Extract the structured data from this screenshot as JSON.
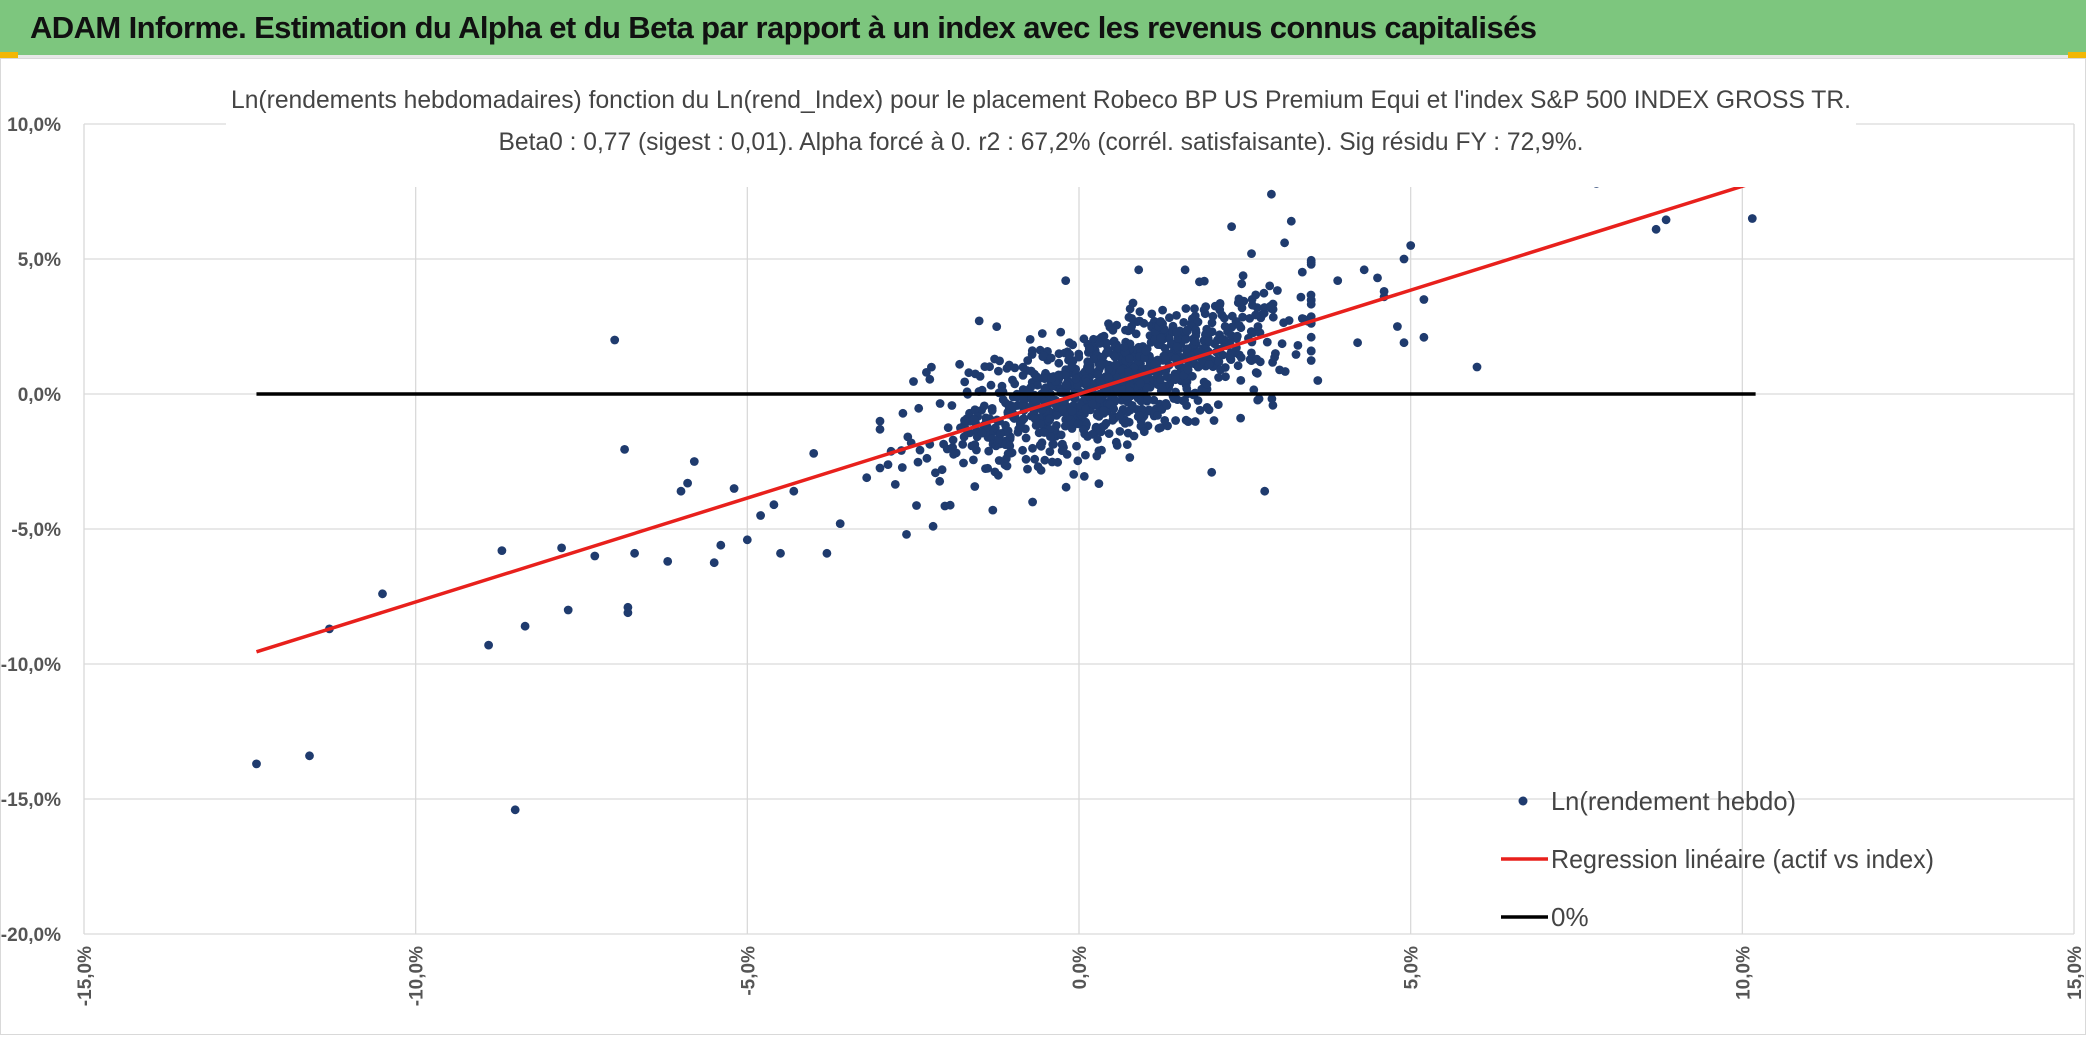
{
  "header": {
    "title": "ADAM Informe. Estimation du Alpha et du Beta par rapport à un index avec les revenus connus capitalisés"
  },
  "colors": {
    "banner": "#7dc67e",
    "points": "#1f3b6e",
    "regression": "#e8201c",
    "zero_line": "#000000",
    "grid": "#d9d9d9",
    "corner_accent": "#f2b705"
  },
  "chart_data": {
    "type": "scatter",
    "title": "Ln(rendements hebdomadaires) fonction du Ln(rend_Index) pour le placement Robeco BP US Premium Equi et l'index S&P 500 INDEX GROSS TR.",
    "subtitle": "Beta0 : 0,77 (sigest : 0,01). Alpha forcé à 0. r2 : 67,2% (corrél. satisfaisante). Sig résidu FY : 72,9%.",
    "xlim": [
      -15,
      15
    ],
    "ylim": [
      -20,
      10
    ],
    "x_ticks": [
      {
        "value": -15,
        "label": "-15,0%"
      },
      {
        "value": -10,
        "label": "-10,0%"
      },
      {
        "value": -5,
        "label": "-5,0%"
      },
      {
        "value": 0,
        "label": "0,0%"
      },
      {
        "value": 5,
        "label": "5,0%"
      },
      {
        "value": 10,
        "label": "10,0%"
      },
      {
        "value": 15,
        "label": "15,0%"
      }
    ],
    "y_ticks": [
      {
        "value": 10,
        "label": "10,0%"
      },
      {
        "value": 5,
        "label": "5,0%"
      },
      {
        "value": 0,
        "label": "0,0%"
      },
      {
        "value": -5,
        "label": "-5,0%"
      },
      {
        "value": -10,
        "label": "-10,0%"
      },
      {
        "value": -15,
        "label": "-15,0%"
      },
      {
        "value": -20,
        "label": "-20,0%"
      }
    ],
    "grid": true,
    "legend_position": "bottom-right",
    "series": [
      {
        "name": "Ln(rendement hebdo)",
        "kind": "scatter",
        "beta": 0.77,
        "spread": 1.1,
        "cloud_points": 1050,
        "cloud_x_range": [
          -3,
          3.5
        ],
        "points": [
          {
            "x": -12.4,
            "y": -13.7
          },
          {
            "x": -11.6,
            "y": -13.4
          },
          {
            "x": -11.3,
            "y": -8.7
          },
          {
            "x": -10.5,
            "y": -7.4
          },
          {
            "x": -8.5,
            "y": -15.4
          },
          {
            "x": -8.9,
            "y": -9.3
          },
          {
            "x": -8.7,
            "y": -5.8
          },
          {
            "x": -8.35,
            "y": -8.6
          },
          {
            "x": -7.8,
            "y": -5.7
          },
          {
            "x": -7.7,
            "y": -8.0
          },
          {
            "x": -7.3,
            "y": -6.0
          },
          {
            "x": -6.8,
            "y": -8.1
          },
          {
            "x": -6.8,
            "y": -7.9
          },
          {
            "x": -6.7,
            "y": -5.9
          },
          {
            "x": -7.0,
            "y": 2.0
          },
          {
            "x": -6.85,
            "y": -2.05
          },
          {
            "x": -6.2,
            "y": -6.2
          },
          {
            "x": -5.5,
            "y": -6.25
          },
          {
            "x": -5.4,
            "y": -5.6
          },
          {
            "x": -5.0,
            "y": -5.4
          },
          {
            "x": -4.5,
            "y": -5.9
          },
          {
            "x": -3.8,
            "y": -5.9
          },
          {
            "x": -5.8,
            "y": -2.5
          },
          {
            "x": -5.9,
            "y": -3.3
          },
          {
            "x": -6.0,
            "y": -3.6
          },
          {
            "x": -4.8,
            "y": -4.5
          },
          {
            "x": -4.3,
            "y": -3.6
          },
          {
            "x": -5.2,
            "y": -3.5
          },
          {
            "x": -4.6,
            "y": -4.1
          },
          {
            "x": -3.6,
            "y": -4.8
          },
          {
            "x": -4.0,
            "y": -2.2
          },
          {
            "x": -3.2,
            "y": -3.1
          },
          {
            "x": -2.6,
            "y": -5.2
          },
          {
            "x": -2.2,
            "y": -4.9
          },
          {
            "x": -1.3,
            "y": -4.3
          },
          {
            "x": -0.7,
            "y": -4.0
          },
          {
            "x": -1.8,
            "y": 1.1
          },
          {
            "x": -2.3,
            "y": 0.8
          },
          {
            "x": -0.2,
            "y": 4.2
          },
          {
            "x": 0.9,
            "y": 4.6
          },
          {
            "x": 1.6,
            "y": 4.6
          },
          {
            "x": 2.0,
            "y": -2.9
          },
          {
            "x": 2.8,
            "y": -3.6
          },
          {
            "x": 2.3,
            "y": 6.2
          },
          {
            "x": 2.9,
            "y": 7.4
          },
          {
            "x": 3.2,
            "y": 6.4
          },
          {
            "x": 3.1,
            "y": 5.6
          },
          {
            "x": 2.6,
            "y": 5.2
          },
          {
            "x": 3.5,
            "y": 4.8
          },
          {
            "x": 3.9,
            "y": 4.2
          },
          {
            "x": 4.3,
            "y": 4.6
          },
          {
            "x": 4.5,
            "y": 4.3
          },
          {
            "x": 4.6,
            "y": 3.6
          },
          {
            "x": 4.9,
            "y": 5.0
          },
          {
            "x": 5.0,
            "y": 5.5
          },
          {
            "x": 4.8,
            "y": 2.5
          },
          {
            "x": 4.9,
            "y": 1.9
          },
          {
            "x": 5.2,
            "y": 2.1
          },
          {
            "x": 5.2,
            "y": 3.5
          },
          {
            "x": 4.6,
            "y": 3.8
          },
          {
            "x": 3.6,
            "y": 0.5
          },
          {
            "x": 4.2,
            "y": 1.9
          },
          {
            "x": 3.3,
            "y": 1.8
          },
          {
            "x": 6.0,
            "y": 1.0
          },
          {
            "x": 7.8,
            "y": 7.8
          },
          {
            "x": 8.7,
            "y": 6.1
          },
          {
            "x": 8.85,
            "y": 6.45
          },
          {
            "x": 10.15,
            "y": 6.5
          }
        ]
      },
      {
        "name": "Regression linéaire (actif vs index)",
        "kind": "line",
        "points": [
          {
            "x": -12.4,
            "y": -9.55
          },
          {
            "x": 10.2,
            "y": 7.85
          }
        ]
      },
      {
        "name": "0%",
        "kind": "line",
        "points": [
          {
            "x": -12.4,
            "y": 0
          },
          {
            "x": 10.2,
            "y": 0
          }
        ]
      }
    ]
  }
}
